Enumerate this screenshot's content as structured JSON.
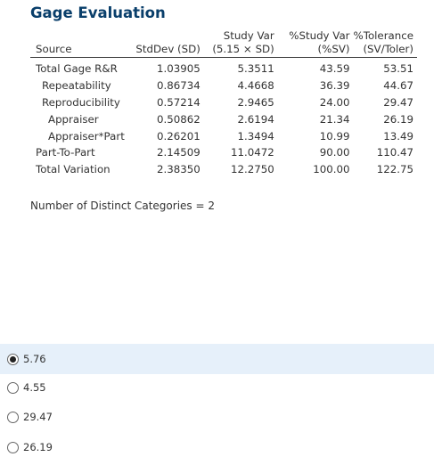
{
  "title": "Gage Evaluation",
  "table": {
    "head_top": [
      "",
      "",
      "Study Var",
      "%Study Var",
      "%Tolerance"
    ],
    "head_bottom": [
      "Source",
      "StdDev (SD)",
      "(5.15 × SD)",
      "(%SV)",
      "(SV/Toler)"
    ],
    "rows": [
      [
        "Total Gage R&R",
        "1.03905",
        "5.3511",
        "43.59",
        "53.51"
      ],
      [
        "Repeatability",
        "0.86734",
        "4.4668",
        "36.39",
        "44.67"
      ],
      [
        "Reproducibility",
        "0.57214",
        "2.9465",
        "24.00",
        "29.47"
      ],
      [
        "Appraiser",
        "0.50862",
        "2.6194",
        "21.34",
        "26.19"
      ],
      [
        "Appraiser*Part",
        "0.26201",
        "1.3494",
        "10.99",
        "13.49"
      ],
      [
        "Part-To-Part",
        "2.14509",
        "11.0472",
        "90.00",
        "110.47"
      ],
      [
        "Total Variation",
        "2.38350",
        "12.2750",
        "100.00",
        "122.75"
      ]
    ]
  },
  "ndc": "Number of Distinct Categories = 2",
  "options": [
    {
      "label": "5.76",
      "selected": true
    },
    {
      "label": "4.55",
      "selected": false
    },
    {
      "label": "29.47",
      "selected": false
    },
    {
      "label": "26.19",
      "selected": false
    }
  ]
}
